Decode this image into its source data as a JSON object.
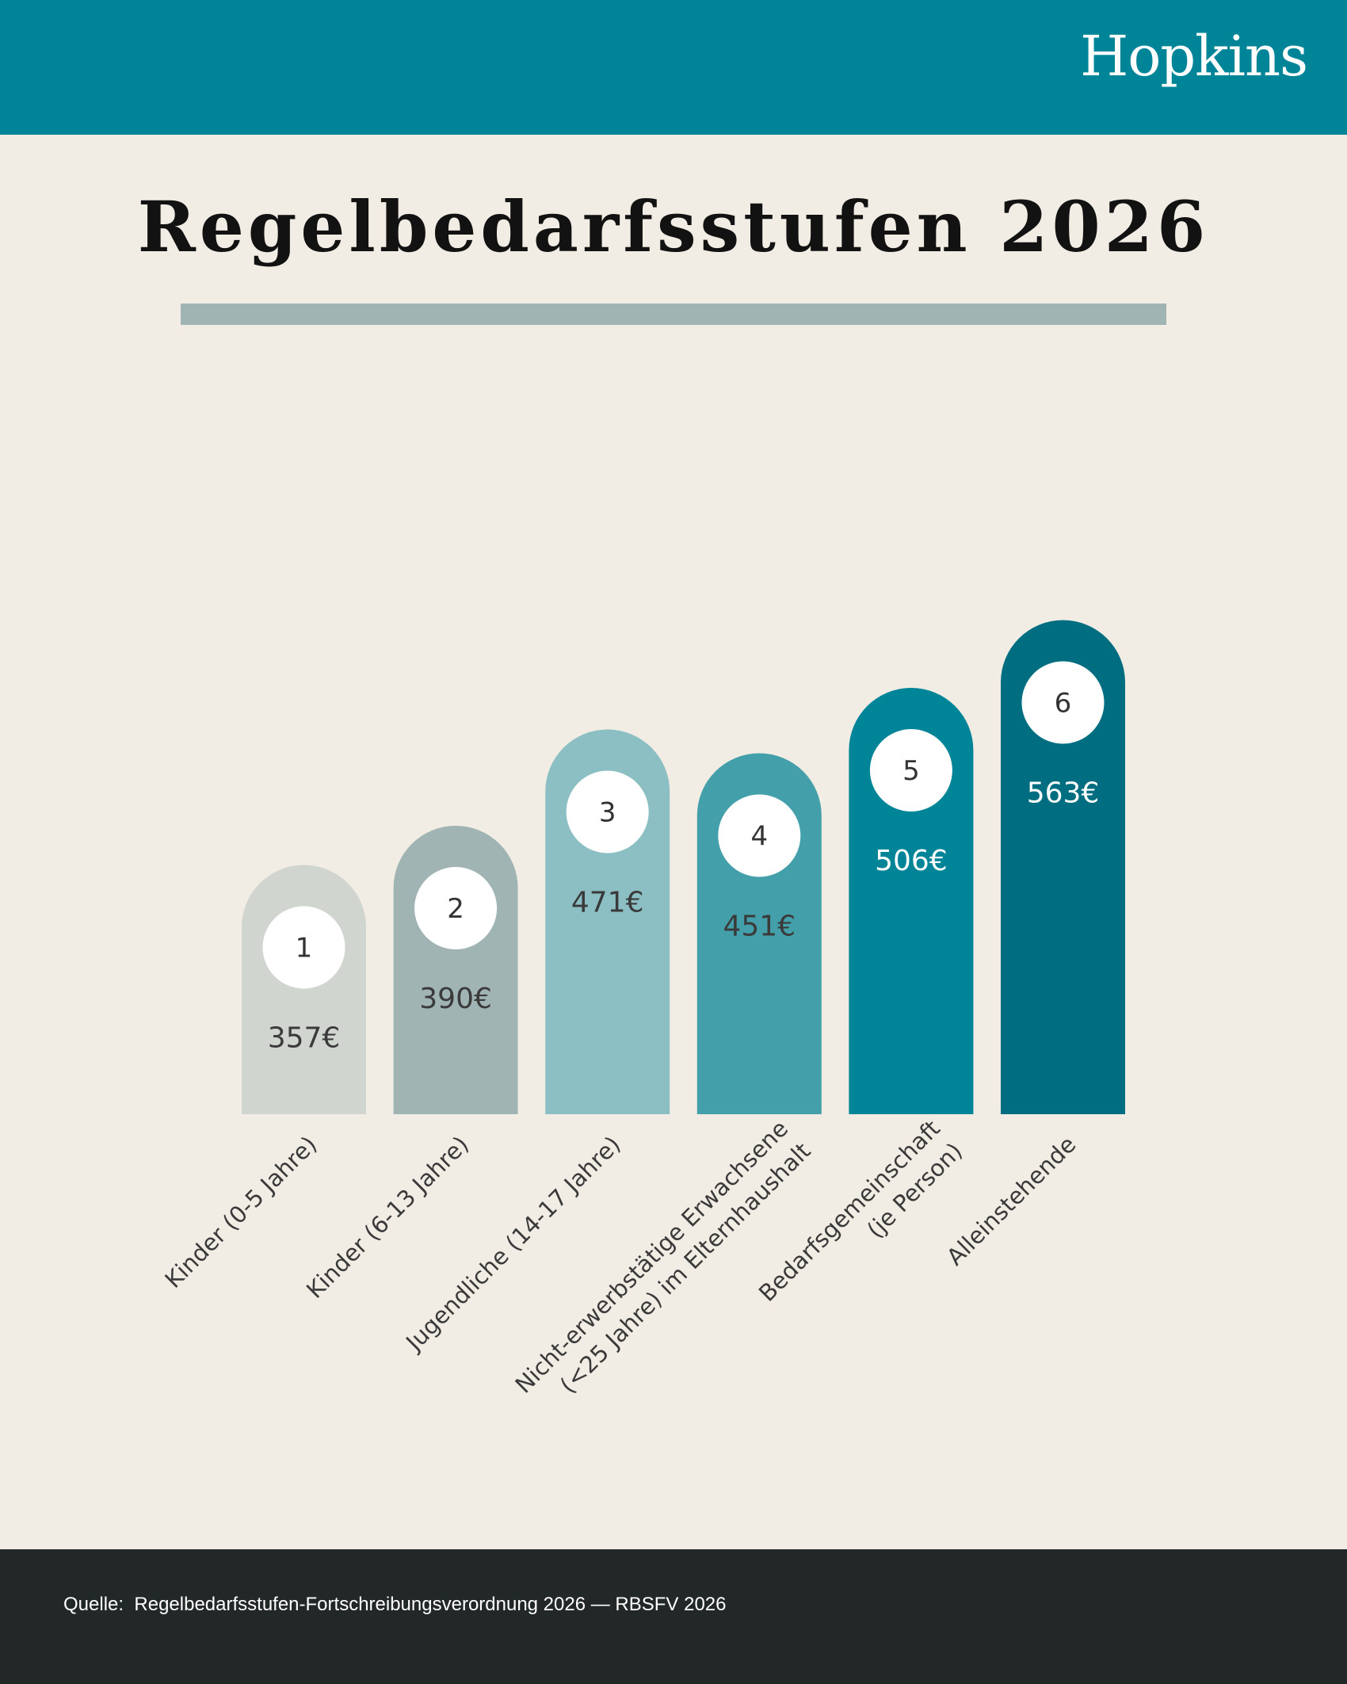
{
  "header": {
    "logo": "Hopkins",
    "background": "#008598"
  },
  "title": "Regelbedarfsstufen 2026",
  "chart_data": {
    "type": "bar",
    "title": "Regelbedarfsstufen 2026",
    "xlabel": "",
    "ylabel": "",
    "unit": "€",
    "grid": false,
    "legend": "none",
    "categories": [
      [
        "Kinder (0-5 Jahre)"
      ],
      [
        "Kinder (6-13 Jahre)"
      ],
      [
        "Jugendliche (14-17 Jahre)"
      ],
      [
        "Nicht-erwerbstätige Erwachsene",
        "(<25 Jahre) im Elternhaushalt"
      ],
      [
        "Bedarfsgemeinschaft",
        "(je Person)"
      ],
      [
        "Alleinstehende"
      ]
    ],
    "levels": [
      "1",
      "2",
      "3",
      "4",
      "5",
      "6"
    ],
    "values": [
      357,
      390,
      471,
      451,
      506,
      563
    ],
    "value_labels": [
      "357€",
      "390€",
      "471€",
      "451€",
      "506€",
      "563€"
    ],
    "colors": [
      "#d0d5d0",
      "#a0b4b4",
      "#8bbfc3",
      "#43a0aa",
      "#008598",
      "#006e80"
    ],
    "label_colors": [
      "#3a3a3a",
      "#3a3a3a",
      "#3a3a3a",
      "#3a3a3a",
      "#ffffff",
      "#ffffff"
    ]
  },
  "footer": {
    "source_label": "Quelle:",
    "source_text": "Regelbedarfsstufen-Fortschreibungsverordnung 2026 — RBSFV 2026"
  }
}
